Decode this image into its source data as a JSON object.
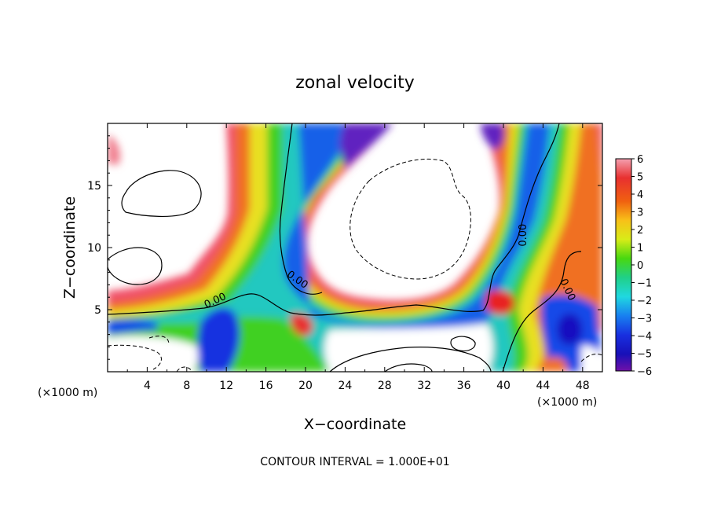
{
  "chart_data": {
    "type": "heatmap",
    "title": "zonal velocity",
    "xlabel": "X−coordinate",
    "ylabel": "Z−coordinate",
    "x_unit_label": "(×1000 m)",
    "y_unit_label": "(×1000 m)",
    "xlim": [
      0,
      50
    ],
    "ylim": [
      0,
      20
    ],
    "x_ticks": [
      4,
      8,
      12,
      16,
      20,
      24,
      28,
      32,
      36,
      40,
      44,
      48
    ],
    "y_ticks": [
      5,
      10,
      15
    ],
    "colorbar": {
      "min": -6,
      "max": 6,
      "ticks": [
        6,
        5,
        4,
        3,
        2,
        1,
        0,
        -1,
        -2,
        -3,
        -4,
        -5,
        -6
      ],
      "tick_labels": [
        "6",
        "5",
        "4",
        "3",
        "2",
        "1",
        "0",
        "−1",
        "−2",
        "−3",
        "−4",
        "−5",
        "−6"
      ],
      "colors": [
        "#f08ca0",
        "#e83030",
        "#f04018",
        "#f89010",
        "#f8d818",
        "#c8ec18",
        "#48d810",
        "#20d070",
        "#20d8d0",
        "#1890f0",
        "#1838e8",
        "#1810c0",
        "#7818b0"
      ]
    },
    "contour_labels": [
      {
        "text": "0.00",
        "x": 11,
        "y": 5.5,
        "angle": -25
      },
      {
        "text": "0.00",
        "x": 19,
        "y": 7.2,
        "angle": 35
      },
      {
        "text": "0.00",
        "x": 42.3,
        "y": 11,
        "angle": -90
      },
      {
        "text": "0.00",
        "x": 46.2,
        "y": 6.5,
        "angle": 65
      }
    ],
    "footer": "CONTOUR INTERVAL = 1.000E+01"
  }
}
